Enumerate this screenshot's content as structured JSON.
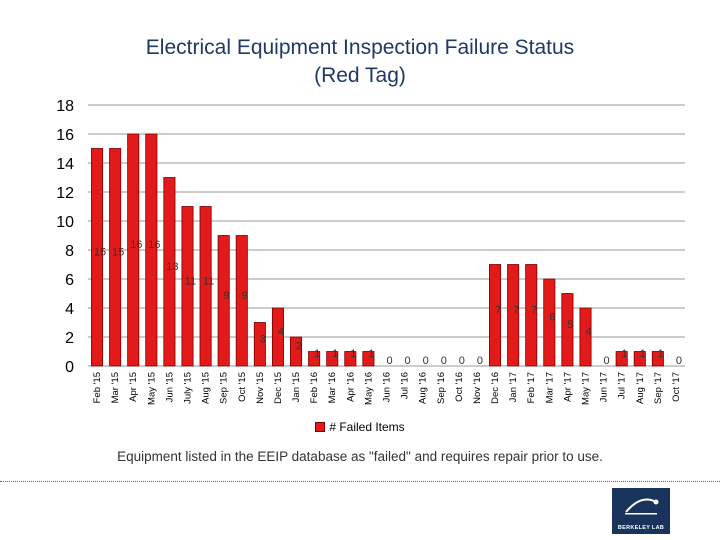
{
  "title_line1": "Electrical Equipment Inspection Failure Status",
  "title_line2": "(Red Tag)",
  "caption": "Equipment listed in the EEIP database as \"failed\" and requires repair prior to use.",
  "logo_text": "BERKELEY LAB",
  "chart_data": {
    "type": "bar",
    "categories": [
      "Feb '15",
      "Mar '15",
      "Apr '15",
      "May '15",
      "Jun '15",
      "July '15",
      "Aug '15",
      "Sep '15",
      "Oct '15",
      "Nov '15",
      "Dec '15",
      "Jan '15",
      "Feb '16",
      "Mar '16",
      "Apr '16",
      "May '16",
      "Jun '16",
      "Jul '16",
      "Aug '16",
      "Sep '16",
      "Oct '16",
      "Nov '16",
      "Dec '16",
      "Jan '17",
      "Feb '17",
      "Mar '17",
      "Apr '17",
      "May '17",
      "Jun '17",
      "Jul '17",
      "Aug '17",
      "Sep '17",
      "Oct '17"
    ],
    "series": [
      {
        "name": "# Failed Items",
        "values": [
          15,
          15,
          16,
          16,
          13,
          11,
          11,
          9,
          9,
          3,
          4,
          2,
          1,
          1,
          1,
          1,
          0,
          0,
          0,
          0,
          0,
          0,
          7,
          7,
          7,
          6,
          5,
          4,
          0,
          1,
          1,
          1,
          0
        ]
      }
    ],
    "y_ticks": [
      0,
      2,
      4,
      6,
      8,
      10,
      12,
      14,
      16,
      18
    ],
    "ylim": [
      0,
      18
    ],
    "grid": true,
    "legend_position": "bottom",
    "bar_color": "#e31a1a",
    "bar_edge_color": "#7a0000"
  }
}
